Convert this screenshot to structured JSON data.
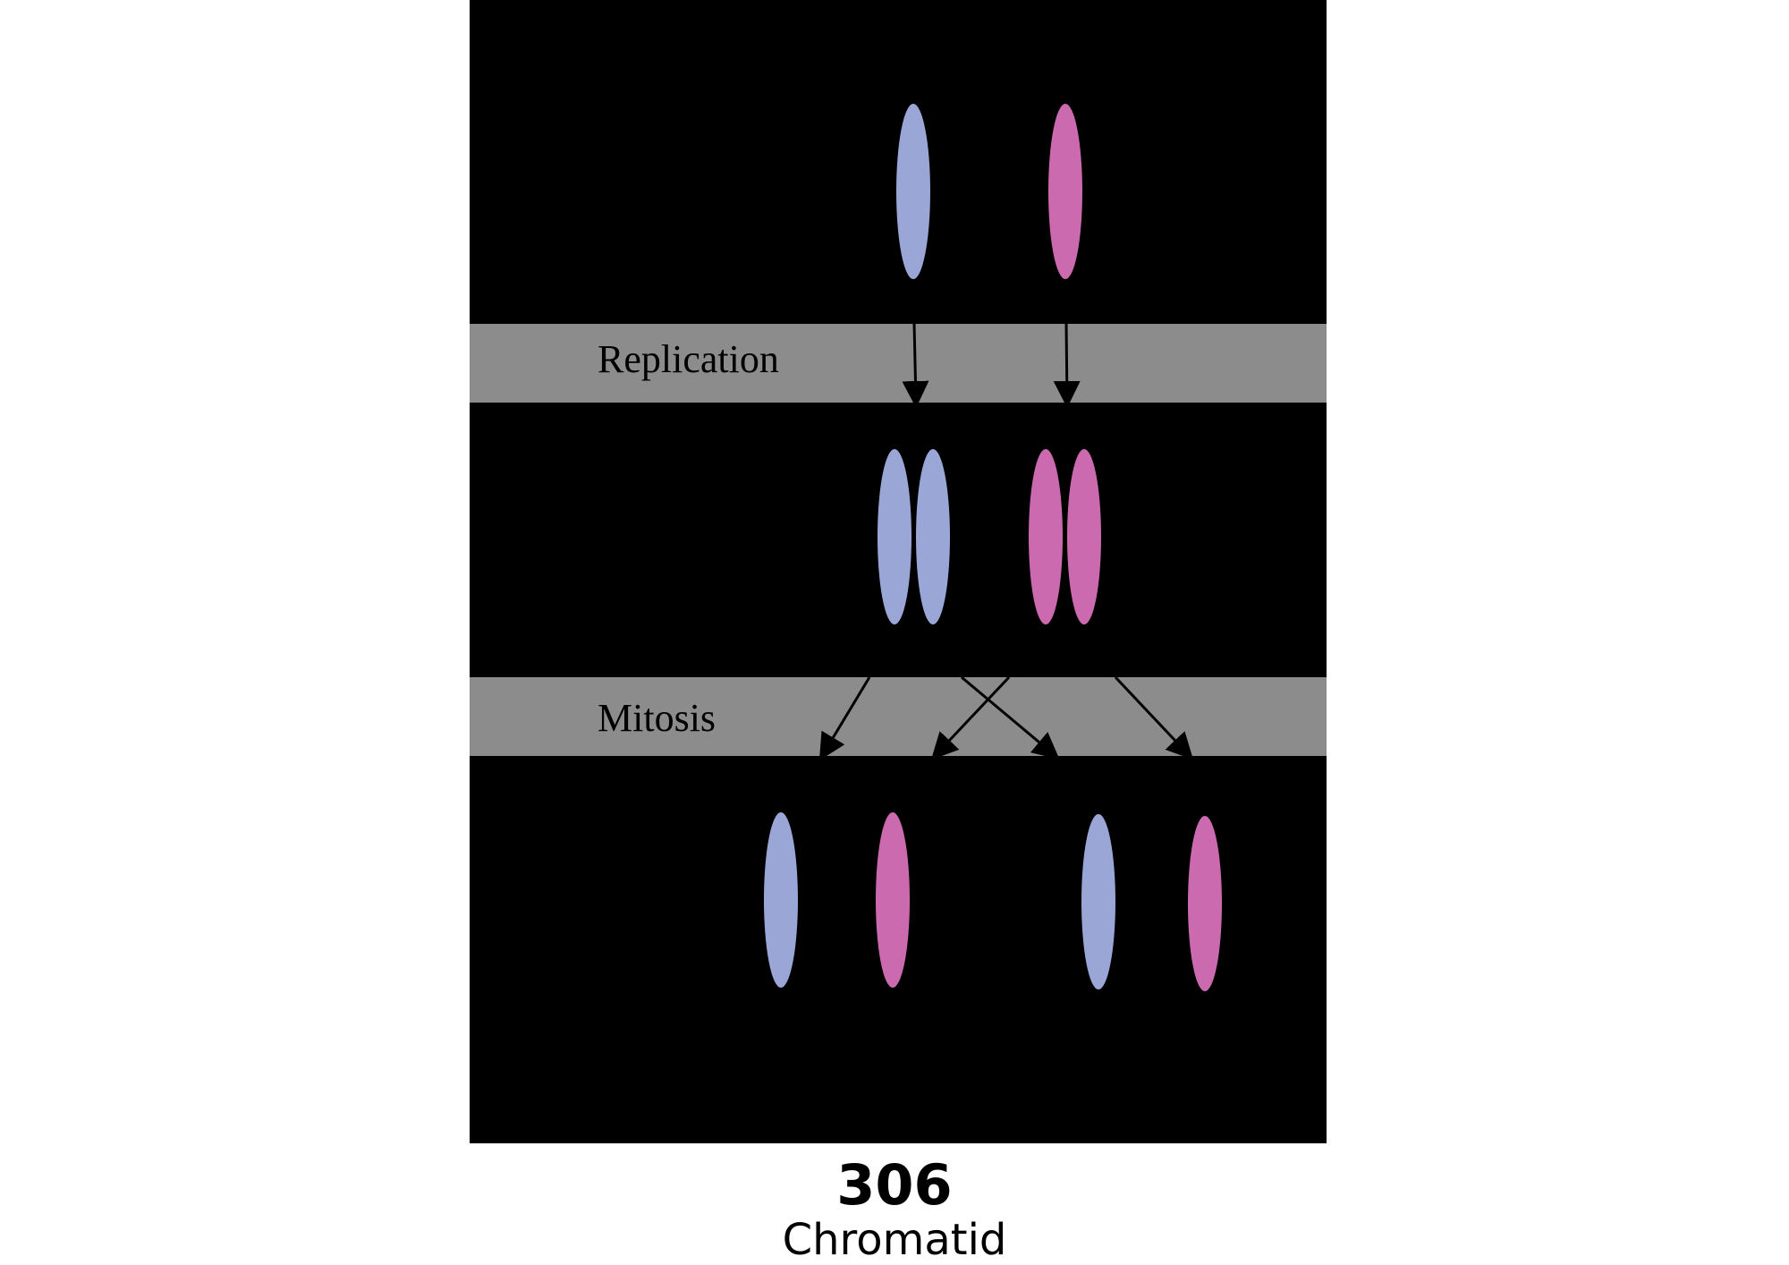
{
  "diagram": {
    "background_color": "#000000",
    "band_color": "#8c8c8c",
    "bands": [
      {
        "label": "Replication"
      },
      {
        "label": "Mitosis"
      }
    ],
    "colors": {
      "chromosome_a": "#9aa6d6",
      "chromosome_b": "#cc6aaf",
      "arrow": "#000000"
    }
  },
  "caption": {
    "number": "306",
    "term": "Chromatid"
  }
}
